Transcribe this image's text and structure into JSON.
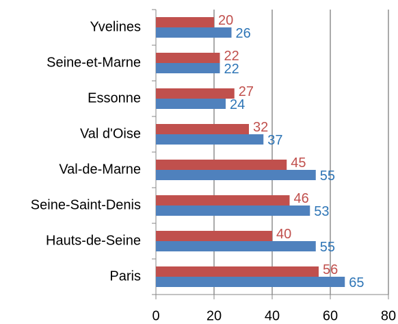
{
  "chart_data": {
    "type": "bar",
    "orientation": "horizontal",
    "categories": [
      "Yvelines",
      "Seine-et-Marne",
      "Essonne",
      "Val d'Oise",
      "Val-de-Marne",
      "Seine-Saint-Denis",
      "Hauts-de-Seine",
      "Paris"
    ],
    "series": [
      {
        "color": "#c0504d",
        "label_color": "#c0504d",
        "values": [
          20,
          22,
          27,
          32,
          45,
          46,
          40,
          56
        ]
      },
      {
        "color": "#4f81bd",
        "label_color": "#2e75b6",
        "values": [
          26,
          22,
          24,
          37,
          55,
          53,
          55,
          65
        ]
      }
    ],
    "xlim": [
      0,
      80
    ],
    "xticks": [
      0,
      20,
      40,
      60,
      80
    ],
    "grid": true
  }
}
